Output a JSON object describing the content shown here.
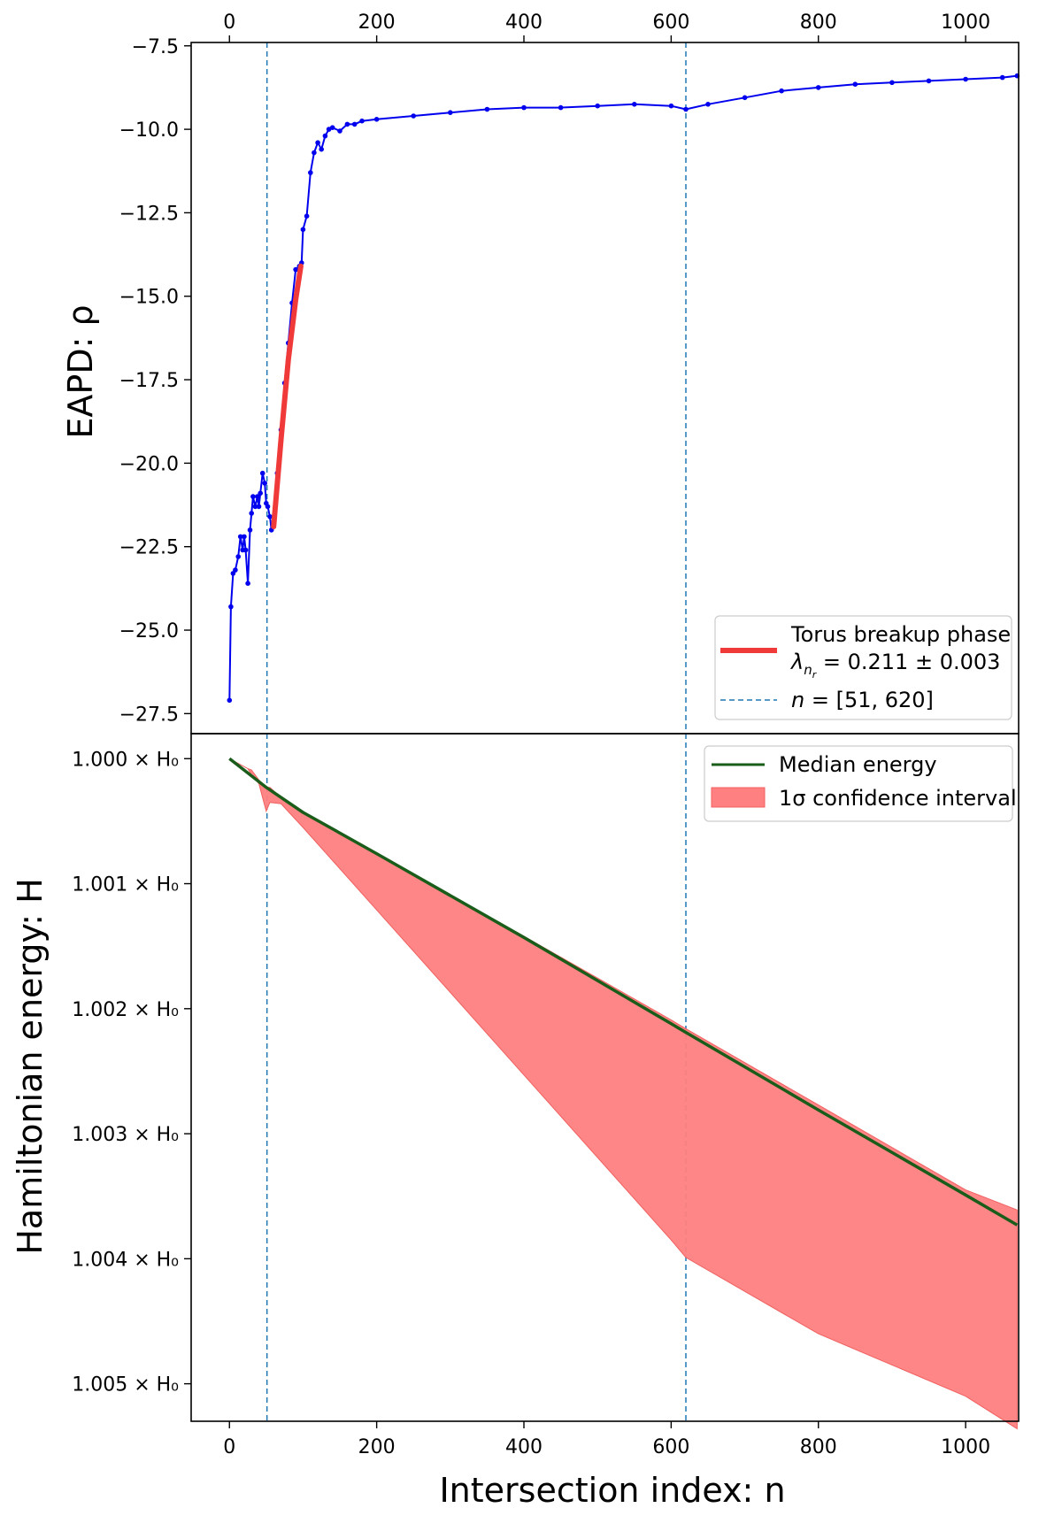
{
  "chart_data": [
    {
      "type": "line",
      "panel": "top",
      "ylabel": "EAPD: ρ",
      "xlim": [
        -52,
        1072
      ],
      "ylim": [
        -28.1,
        -7.4
      ],
      "x_ticks_top": [
        0,
        200,
        400,
        600,
        800,
        1000
      ],
      "y_ticks": [
        -7.5,
        -10.0,
        -12.5,
        -15.0,
        -17.5,
        -20.0,
        -22.5,
        -25.0,
        -27.5
      ],
      "y_tick_labels": [
        "−7.5",
        "−10.0",
        "−12.5",
        "−15.0",
        "−17.5",
        "−20.0",
        "−22.5",
        "−25.0",
        "−27.5"
      ],
      "series": [
        {
          "name": "EAPD",
          "color": "#0000ee",
          "x": [
            0,
            2,
            5,
            8,
            12,
            15,
            18,
            20,
            22,
            25,
            28,
            30,
            32,
            35,
            38,
            40,
            42,
            45,
            48,
            50,
            52,
            55,
            57,
            60,
            65,
            70,
            75,
            80,
            85,
            90,
            95,
            98,
            100,
            105,
            110,
            115,
            120,
            125,
            130,
            135,
            140,
            150,
            160,
            170,
            180,
            200,
            250,
            300,
            350,
            400,
            450,
            500,
            550,
            600,
            620,
            650,
            700,
            750,
            800,
            850,
            900,
            950,
            1000,
            1050,
            1070
          ],
          "y": [
            -27.1,
            -24.3,
            -23.3,
            -23.2,
            -22.8,
            -22.2,
            -22.6,
            -22.2,
            -22.6,
            -23.6,
            -22.0,
            -21.5,
            -21.0,
            -21.3,
            -21.0,
            -21.3,
            -20.9,
            -20.3,
            -20.6,
            -21.2,
            -21.3,
            -21.6,
            -22.0,
            -21.6,
            -20.3,
            -19.0,
            -17.6,
            -16.4,
            -15.2,
            -14.2,
            -14.1,
            -14.0,
            -13.0,
            -12.6,
            -11.3,
            -10.7,
            -10.4,
            -10.6,
            -10.2,
            -10.0,
            -9.95,
            -10.05,
            -9.85,
            -9.85,
            -9.75,
            -9.7,
            -9.6,
            -9.5,
            -9.4,
            -9.35,
            -9.35,
            -9.3,
            -9.25,
            -9.3,
            -9.4,
            -9.25,
            -9.05,
            -8.85,
            -8.75,
            -8.65,
            -8.6,
            -8.55,
            -8.5,
            -8.45,
            -8.4
          ]
        },
        {
          "name": "Torus breakup phase",
          "color": "#f03a3a",
          "x": [
            60,
            70,
            80,
            90,
            97
          ],
          "y": [
            -21.9,
            -19.3,
            -16.9,
            -15.1,
            -14.1
          ]
        }
      ],
      "vlines": [
        51,
        620
      ],
      "legend": {
        "position": "lower right",
        "entries": [
          {
            "label": "Torus breakup phase",
            "sublabel": "λ_{n_r} = 0.211 ± 0.003",
            "style": "line",
            "color": "#f03a3a"
          },
          {
            "label": "n = [51, 620]",
            "style": "dashed",
            "color": "#1f77b4"
          }
        ]
      }
    },
    {
      "type": "area",
      "panel": "bottom",
      "xlabel": "Intersection index: n",
      "ylabel": "Hamiltonian energy: H",
      "xlim": [
        -52,
        1072
      ],
      "ylim": [
        1.0053,
        0.9998
      ],
      "y_inverted": true,
      "x_ticks": [
        0,
        200,
        400,
        600,
        800,
        1000
      ],
      "y_ticks": [
        1.0,
        1.001,
        1.002,
        1.003,
        1.004,
        1.005
      ],
      "y_tick_labels": [
        "1.000 × H₀",
        "1.001 × H₀",
        "1.002 × H₀",
        "1.003 × H₀",
        "1.004 × H₀",
        "1.005 × H₀"
      ],
      "series": [
        {
          "name": "Median energy",
          "color": "#1a5c1a",
          "x": [
            0,
            50,
            100,
            200,
            400,
            600,
            620,
            800,
            1000,
            1070
          ],
          "y": [
            1.0,
            1.00023,
            1.00043,
            1.00076,
            1.00143,
            1.00212,
            1.00219,
            1.00281,
            1.00349,
            1.00373
          ]
        },
        {
          "name": "1σ confidence interval",
          "color": "#ff8080",
          "x": [
            0,
            25,
            30,
            40,
            50,
            55,
            70,
            100,
            200,
            400,
            600,
            620,
            800,
            1000,
            1070
          ],
          "lower": [
            1.0,
            1.00008,
            1.00009,
            1.00017,
            1.00023,
            1.00023,
            1.00031,
            1.00043,
            1.00076,
            1.00142,
            1.00209,
            1.00216,
            1.00277,
            1.00345,
            1.00361
          ],
          "upper": [
            1.0,
            1.00008,
            1.00013,
            1.0002,
            1.00042,
            1.00035,
            1.00036,
            1.00055,
            1.00121,
            1.00253,
            1.00385,
            1.00399,
            1.0046,
            1.0051,
            1.00536
          ]
        }
      ],
      "vlines": [
        51,
        620
      ],
      "legend": {
        "position": "upper right",
        "entries": [
          {
            "label": "Median energy",
            "style": "line",
            "color": "#1a5c1a"
          },
          {
            "label": "1σ confidence interval",
            "style": "patch",
            "color": "#ff8080"
          }
        ]
      }
    }
  ]
}
